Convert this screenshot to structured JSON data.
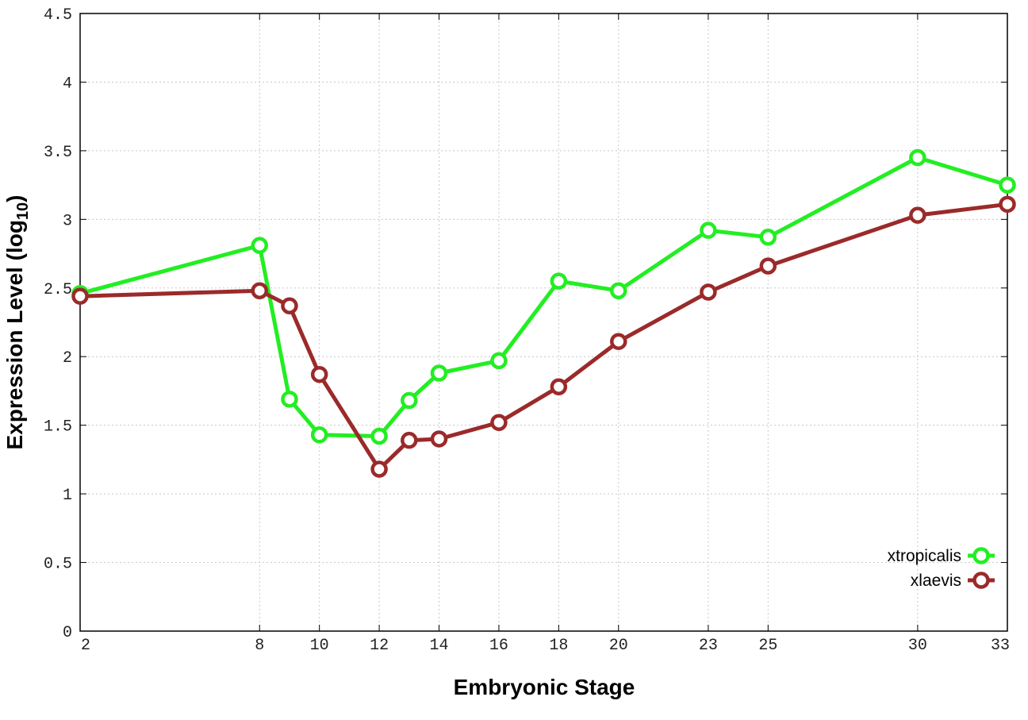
{
  "chart_data": {
    "type": "line",
    "title": "",
    "xlabel": "Embryonic Stage",
    "ylabel": "Expression Level (log",
    "ylabel_sub": "10",
    "ylabel_close": ")",
    "x": [
      2,
      8,
      9,
      10,
      12,
      13,
      14,
      16,
      18,
      20,
      23,
      25,
      30,
      33
    ],
    "x_ticks": [
      {
        "value": 2,
        "label": "2"
      },
      {
        "value": 8,
        "label": "8"
      },
      {
        "value": 10,
        "label": "10"
      },
      {
        "value": 12,
        "label": "12"
      },
      {
        "value": 14,
        "label": "14"
      },
      {
        "value": 16,
        "label": "16"
      },
      {
        "value": 18,
        "label": "18"
      },
      {
        "value": 20,
        "label": "20"
      },
      {
        "value": 23,
        "label": "23"
      },
      {
        "value": 25,
        "label": "25"
      },
      {
        "value": 30,
        "label": "30"
      },
      {
        "value": 33,
        "label": "33"
      }
    ],
    "y_ticks": [
      {
        "value": 0,
        "label": "0"
      },
      {
        "value": 0.5,
        "label": "0.5"
      },
      {
        "value": 1,
        "label": "1"
      },
      {
        "value": 1.5,
        "label": "1.5"
      },
      {
        "value": 2,
        "label": "2"
      },
      {
        "value": 2.5,
        "label": "2.5"
      },
      {
        "value": 3,
        "label": "3"
      },
      {
        "value": 3.5,
        "label": "3.5"
      },
      {
        "value": 4,
        "label": "4"
      },
      {
        "value": 4.5,
        "label": "4.5"
      }
    ],
    "xlim": [
      2,
      33
    ],
    "ylim": [
      0,
      4.5
    ],
    "grid": true,
    "legend_position": "bottom-right",
    "series": [
      {
        "name": "xtropicalis",
        "color": "#22ee22",
        "values": [
          2.46,
          2.81,
          1.69,
          1.43,
          1.42,
          1.68,
          1.88,
          1.97,
          2.55,
          2.48,
          2.92,
          2.87,
          3.45,
          3.25
        ]
      },
      {
        "name": "xlaevis",
        "color": "#9b2a2a",
        "values": [
          2.44,
          2.48,
          2.37,
          1.87,
          1.18,
          1.39,
          1.4,
          1.52,
          1.78,
          2.11,
          2.47,
          2.66,
          3.03,
          3.11
        ]
      }
    ]
  }
}
